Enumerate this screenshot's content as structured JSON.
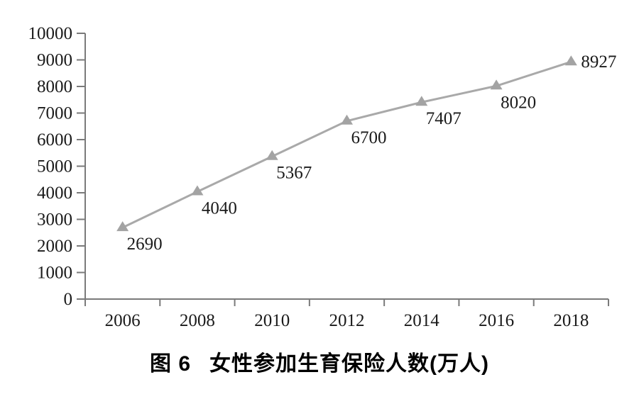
{
  "figure": {
    "caption_label": "图 6",
    "caption_text": "女性参加生育保险人数(万人)"
  },
  "chart_data": {
    "type": "line",
    "title": "图 6 女性参加生育保险人数(万人)",
    "categories": [
      "2006",
      "2008",
      "2010",
      "2012",
      "2014",
      "2016",
      "2018"
    ],
    "series": [
      {
        "name": "女性参加生育保险人数",
        "values": [
          2690,
          4040,
          5367,
          6700,
          7407,
          8020,
          8927
        ]
      }
    ],
    "data_labels": [
      "2690",
      "4040",
      "5367",
      "6700",
      "7407",
      "8020",
      "8927"
    ],
    "xlabel": "",
    "ylabel": "",
    "ylim": [
      0,
      10000
    ],
    "ytick_step": 1000,
    "ytick_labels": [
      "0",
      "1000",
      "2000",
      "3000",
      "4000",
      "5000",
      "6000",
      "7000",
      "8000",
      "9000",
      "10000"
    ],
    "grid": false,
    "legend": "none",
    "marker": "triangle",
    "colors": {
      "line": "#a9a9a9",
      "marker": "#a3a3a3",
      "axis": "#7a7a7a",
      "tick": "#7a7a7a",
      "text": "#1a1a1a"
    }
  }
}
